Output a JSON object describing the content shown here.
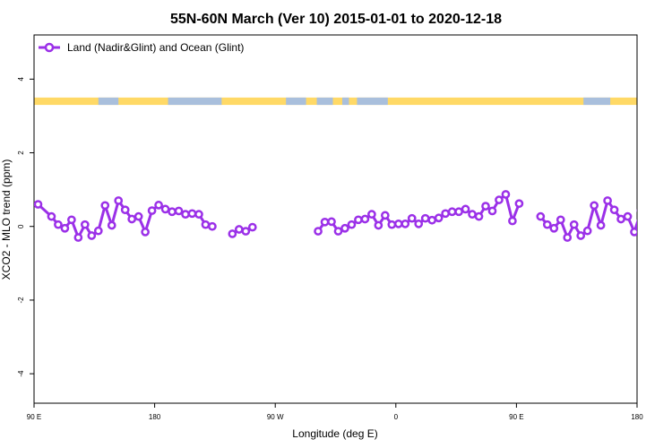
{
  "chart_data": {
    "type": "line",
    "title": "55N-60N March (Ver 10)   2015-01-01 to 2020-12-18",
    "xlabel": "Longitude (deg E)",
    "ylabel": "XCO2 - MLO trend (ppm)",
    "xlim": [
      90,
      540
    ],
    "ylim": [
      -4.8,
      5.2
    ],
    "xticks": [
      {
        "value": 90,
        "label": "90 E"
      },
      {
        "value": 180,
        "label": "180"
      },
      {
        "value": 270,
        "label": "90 W"
      },
      {
        "value": 360,
        "label": "0"
      },
      {
        "value": 450,
        "label": "90 E"
      },
      {
        "value": 540,
        "label": "180"
      }
    ],
    "yticks": [
      {
        "value": -4,
        "label": "-4"
      },
      {
        "value": -2,
        "label": "-2"
      },
      {
        "value": 0,
        "label": "0"
      },
      {
        "value": 2,
        "label": "2"
      },
      {
        "value": 4,
        "label": "4"
      }
    ],
    "legend": {
      "position": "top-left"
    },
    "colors": {
      "series": "#9b30e8",
      "land": "#ffd966",
      "ocean": "#a9bfdc"
    },
    "land_ocean_band": {
      "y_range": [
        3.3,
        3.5
      ],
      "ocean_segments": [
        [
          138,
          153
        ],
        [
          190,
          230
        ],
        [
          278,
          293
        ],
        [
          301,
          313
        ],
        [
          320,
          325
        ],
        [
          331,
          354
        ],
        [
          500,
          520
        ]
      ]
    },
    "series": [
      {
        "name": "Land (Nadir&Glint) and Ocean (Glint)",
        "segments": [
          {
            "x": [
              93,
              103,
              108,
              113,
              118,
              123,
              128,
              133,
              138,
              143,
              148,
              153,
              158,
              163,
              168,
              173,
              178,
              183,
              188,
              193,
              198,
              203,
              208,
              213,
              218
            ],
            "y": [
              0.6,
              0.27,
              0.05,
              -0.05,
              0.18,
              -0.3,
              0.05,
              -0.25,
              -0.12,
              0.57,
              0.03,
              0.7,
              0.45,
              0.2,
              0.27,
              -0.15,
              0.43,
              0.58,
              0.47,
              0.4,
              0.42,
              0.33,
              0.35,
              0.33,
              0.05
            ]
          },
          {
            "x": [
              223
            ],
            "y": [
              0.0
            ]
          },
          {
            "x": [
              238,
              243,
              248,
              253
            ],
            "y": [
              -0.2,
              -0.08,
              -0.13,
              -0.02
            ]
          },
          {
            "x": [
              302,
              307,
              312,
              317,
              322,
              327,
              332,
              337,
              342,
              347,
              352,
              357,
              362,
              367,
              372,
              377,
              382,
              387,
              392,
              397,
              402,
              407,
              412,
              417,
              422,
              427,
              432,
              437,
              442,
              447,
              452,
              457
            ],
            "y": [
              -0.13,
              0.12,
              0.13,
              -0.13,
              -0.05,
              0.05,
              0.18,
              0.2,
              0.33,
              0.03,
              0.3,
              0.05,
              0.07,
              0.07,
              0.22,
              0.07,
              0.22,
              0.17,
              0.23,
              0.35,
              0.4,
              0.4,
              0.47,
              0.33,
              0.27,
              0.55,
              0.42,
              0.72,
              0.87,
              0.15,
              0.62,
              null
            ]
          },
          {
            "x": [
              468,
              473,
              478,
              483,
              488,
              493,
              498,
              503,
              508,
              513,
              518,
              523,
              528,
              533,
              538,
              543
            ],
            "y": [
              0.27,
              0.05,
              -0.05,
              0.18,
              -0.3,
              0.05,
              -0.25,
              -0.12,
              0.57,
              0.03,
              0.7,
              0.45,
              0.2,
              0.27,
              -0.15,
              0.43
            ]
          }
        ]
      }
    ]
  }
}
